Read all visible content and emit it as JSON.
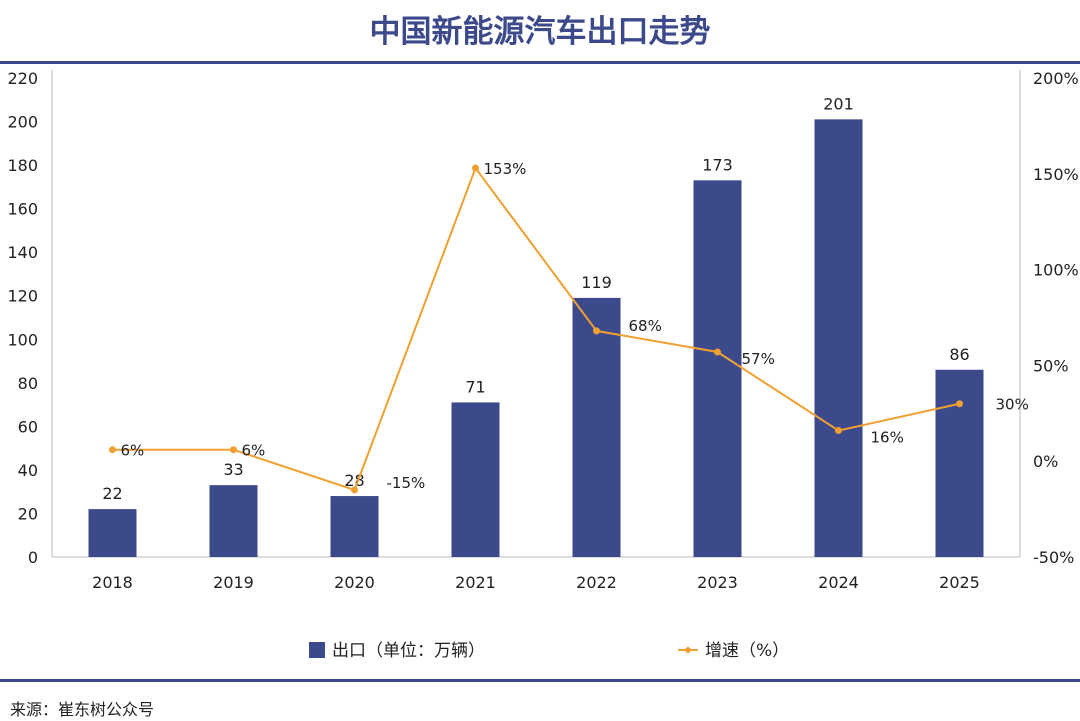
{
  "chart_data": {
    "type": "bar+line",
    "title": "中国新能源汽车出口走势",
    "categories": [
      "2018",
      "2019",
      "2020",
      "2021",
      "2022",
      "2023",
      "2024",
      "2025"
    ],
    "series": [
      {
        "name": "出口（单位：万辆）",
        "type": "bar",
        "axis": "left",
        "values": [
          22,
          33,
          28,
          71,
          119,
          173,
          201,
          86
        ],
        "color": "#3c4a8c"
      },
      {
        "name": "增速（%）",
        "type": "line",
        "axis": "right",
        "values": [
          6,
          6,
          -15,
          153,
          68,
          57,
          16,
          30
        ],
        "color": "#f0a030"
      }
    ],
    "left_axis": {
      "ylim": [
        0,
        220
      ],
      "ticks": [
        "0",
        "20",
        "40",
        "60",
        "80",
        "100",
        "120",
        "140",
        "160",
        "180",
        "200",
        "220"
      ]
    },
    "right_axis": {
      "ylim": [
        -50,
        200
      ],
      "ticks": [
        "-50%",
        "0%",
        "50%",
        "100%",
        "150%",
        "200%"
      ]
    },
    "legend": "bottom",
    "grid": false
  },
  "source": "来源：崔东树公众号"
}
